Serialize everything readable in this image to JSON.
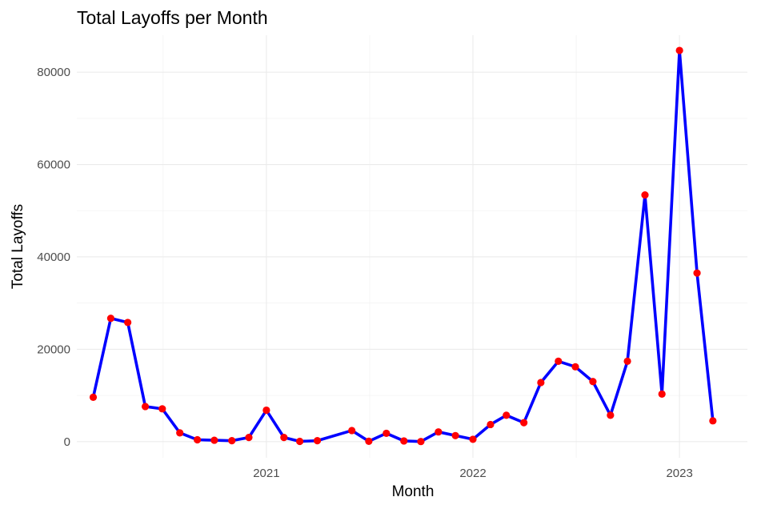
{
  "chart_data": {
    "type": "line",
    "title": "Total Layoffs per Month",
    "xlabel": "Month",
    "ylabel": "Total Layoffs",
    "xlim": [
      "2020-02-01",
      "2023-05-01"
    ],
    "ylim": [
      -3500,
      88000
    ],
    "x_ticks": [
      {
        "date": "2021-01-01",
        "label": "2021"
      },
      {
        "date": "2022-01-01",
        "label": "2022"
      },
      {
        "date": "2023-01-01",
        "label": "2023"
      }
    ],
    "y_ticks": [
      {
        "value": 0,
        "label": "0"
      },
      {
        "value": 20000,
        "label": "20000"
      },
      {
        "value": 40000,
        "label": "40000"
      },
      {
        "value": 60000,
        "label": "60000"
      },
      {
        "value": 80000,
        "label": "80000"
      }
    ],
    "grid": true,
    "legend": "none",
    "colors": {
      "line": "#0000ff",
      "points": "#ff0000"
    },
    "series": [
      {
        "points": [
          {
            "x": "2020-03-01",
            "y": 9600
          },
          {
            "x": "2020-04-01",
            "y": 26700
          },
          {
            "x": "2020-05-01",
            "y": 25800
          },
          {
            "x": "2020-06-01",
            "y": 7600
          },
          {
            "x": "2020-07-01",
            "y": 7100
          },
          {
            "x": "2020-08-01",
            "y": 1900
          },
          {
            "x": "2020-09-01",
            "y": 400
          },
          {
            "x": "2020-10-01",
            "y": 300
          },
          {
            "x": "2020-11-01",
            "y": 200
          },
          {
            "x": "2020-12-01",
            "y": 900
          },
          {
            "x": "2021-01-01",
            "y": 6800
          },
          {
            "x": "2021-02-01",
            "y": 900
          },
          {
            "x": "2021-03-01",
            "y": 50
          },
          {
            "x": "2021-04-01",
            "y": 200
          },
          {
            "x": "2021-06-01",
            "y": 2400
          },
          {
            "x": "2021-07-01",
            "y": 80
          },
          {
            "x": "2021-08-01",
            "y": 1800
          },
          {
            "x": "2021-09-01",
            "y": 150
          },
          {
            "x": "2021-10-01",
            "y": 20
          },
          {
            "x": "2021-11-01",
            "y": 2100
          },
          {
            "x": "2021-12-01",
            "y": 1300
          },
          {
            "x": "2022-01-01",
            "y": 500
          },
          {
            "x": "2022-02-01",
            "y": 3700
          },
          {
            "x": "2022-03-01",
            "y": 5700
          },
          {
            "x": "2022-04-01",
            "y": 4100
          },
          {
            "x": "2022-05-01",
            "y": 12800
          },
          {
            "x": "2022-06-01",
            "y": 17400
          },
          {
            "x": "2022-07-01",
            "y": 16200
          },
          {
            "x": "2022-08-01",
            "y": 13000
          },
          {
            "x": "2022-09-01",
            "y": 5700
          },
          {
            "x": "2022-10-01",
            "y": 17400
          },
          {
            "x": "2022-11-01",
            "y": 53400
          },
          {
            "x": "2022-12-01",
            "y": 10300
          },
          {
            "x": "2023-01-01",
            "y": 84700
          },
          {
            "x": "2023-02-01",
            "y": 36500
          },
          {
            "x": "2023-03-01",
            "y": 4500
          }
        ]
      }
    ]
  }
}
